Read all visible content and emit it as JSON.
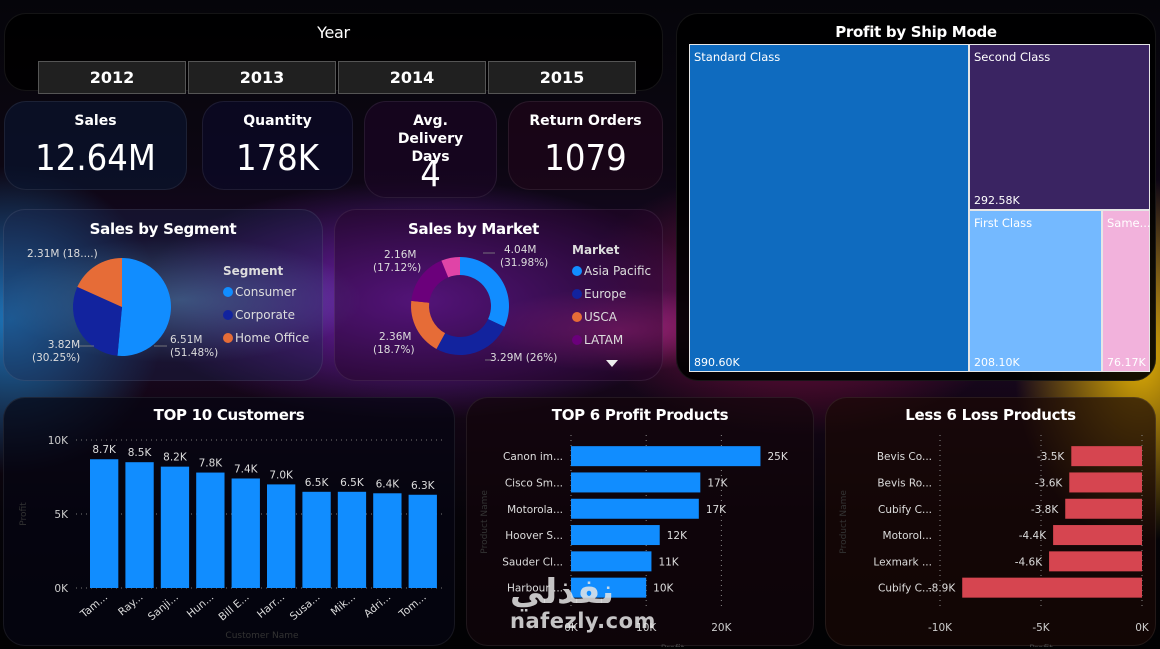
{
  "year_slicer": {
    "title": "Year",
    "options": [
      "2012",
      "2013",
      "2014",
      "2015"
    ]
  },
  "kpis": {
    "sales": {
      "label": "Sales",
      "value": "12.64M"
    },
    "quantity": {
      "label": "Quantity",
      "value": "178K"
    },
    "avg_delivery": {
      "label": "Avg. Delivery Days",
      "value": "4"
    },
    "returns": {
      "label": "Return Orders",
      "value": "1079"
    }
  },
  "colors": {
    "bar_blue": "#118DFF",
    "loss_red": "#D64550",
    "consumer": "#118DFF",
    "corporate": "#12239E",
    "home_office": "#E66C37",
    "latam": "#6B007B",
    "pink": "#E044A7"
  },
  "chart_data": [
    {
      "id": "segment",
      "type": "pie",
      "title": "Sales by Segment",
      "legend_title": "Segment",
      "legend_position": "right",
      "slices": [
        {
          "name": "Consumer",
          "value": 6.51,
          "label": "6.51M",
          "pct_label": "(51.48%)",
          "pct": 51.48,
          "color": "#118DFF"
        },
        {
          "name": "Corporate",
          "value": 3.82,
          "label": "3.82M",
          "pct_label": "(30.25%)",
          "pct": 30.25,
          "color": "#12239E"
        },
        {
          "name": "Home Office",
          "value": 2.31,
          "label": "2.31M (18....)",
          "pct_label": "",
          "pct": 18.27,
          "color": "#E66C37"
        }
      ]
    },
    {
      "id": "market",
      "type": "pie",
      "variant": "donut",
      "title": "Sales by Market",
      "legend_title": "Market",
      "legend_position": "right",
      "legend_items": [
        "Asia Pacific",
        "Europe",
        "USCA",
        "LATAM"
      ],
      "slices": [
        {
          "name": "Asia Pacific",
          "value": 4.04,
          "label": "4.04M",
          "pct_label": "(31.98%)",
          "pct": 31.98,
          "color": "#118DFF"
        },
        {
          "name": "Europe",
          "value": 3.29,
          "label": "3.29M (26%)",
          "pct_label": "",
          "pct": 26.0,
          "color": "#12239E"
        },
        {
          "name": "USCA",
          "value": 2.36,
          "label": "2.36M",
          "pct_label": "(18.7%)",
          "pct": 18.7,
          "color": "#E66C37"
        },
        {
          "name": "LATAM",
          "value": 2.16,
          "label": "2.16M",
          "pct_label": "(17.12%)",
          "pct": 17.12,
          "color": "#6B007B"
        },
        {
          "name": "",
          "value": 0.79,
          "label": "",
          "pct_label": "",
          "pct": 6.2,
          "color": "#E044A7"
        }
      ]
    },
    {
      "id": "shipmode",
      "type": "heatmap",
      "variant": "treemap",
      "title": "Profit by Ship Mode",
      "cells": [
        {
          "name": "Standard Class",
          "value": 890.6,
          "label": "890.60K",
          "color": "#0F6BBF"
        },
        {
          "name": "Second Class",
          "value": 292.58,
          "label": "292.58K",
          "color": "#3A2462"
        },
        {
          "name": "First Class",
          "value": 208.1,
          "label": "208.10K",
          "color": "#74B9FF"
        },
        {
          "name": "Same...",
          "value": 76.17,
          "label": "76.17K",
          "color": "#F2B2DC"
        }
      ]
    },
    {
      "id": "customers",
      "type": "bar",
      "title": "TOP 10 Customers",
      "xlabel": "Customer Name",
      "ylabel": "Profit",
      "ylim": [
        0,
        10000
      ],
      "yticks": [
        "0K",
        "5K",
        "10K"
      ],
      "grid": true,
      "categories": [
        "Tam...",
        "Ray...",
        "Sanji...",
        "Hun...",
        "Bill E...",
        "Harr...",
        "Susa...",
        "Mik...",
        "Adri...",
        "Tom..."
      ],
      "values": [
        8700,
        8500,
        8200,
        7800,
        7400,
        7000,
        6500,
        6500,
        6400,
        6300
      ],
      "value_labels": [
        "8.7K",
        "8.5K",
        "8.2K",
        "7.8K",
        "7.4K",
        "7.0K",
        "6.5K",
        "6.5K",
        "6.4K",
        "6.3K"
      ]
    },
    {
      "id": "profit_products",
      "type": "bar",
      "orientation": "horizontal",
      "title": "TOP 6 Profit Products",
      "xlabel": "Profit",
      "ylabel": "Product Name",
      "xlim": [
        0,
        27000
      ],
      "xticks": [
        {
          "v": 0,
          "label": "0K"
        },
        {
          "v": 10000,
          "label": "10K"
        },
        {
          "v": 20000,
          "label": "20K"
        }
      ],
      "grid": true,
      "categories": [
        "Canon im...",
        "Cisco Sm...",
        "Motorola...",
        "Hoover S...",
        "Sauder Cl...",
        "Harbour ..."
      ],
      "values": [
        25200,
        17200,
        17000,
        11800,
        10700,
        10000
      ],
      "value_labels": [
        "25K",
        "17K",
        "17K",
        "12K",
        "11K",
        "10K"
      ]
    },
    {
      "id": "loss_products",
      "type": "bar",
      "orientation": "horizontal",
      "title": "Less 6 Loss Products",
      "xlabel": "Profit",
      "ylabel": "Product Name",
      "xlim": [
        -10000,
        0
      ],
      "xticks": [
        {
          "v": -10000,
          "label": "-10K"
        },
        {
          "v": -5000,
          "label": "-5K"
        },
        {
          "v": 0,
          "label": "0K"
        }
      ],
      "grid": true,
      "categories": [
        "Bevis Co...",
        "Bevis Ro...",
        "Cubify C...",
        "Motorol...",
        "Lexmark ...",
        "Cubify C..."
      ],
      "values": [
        -3500,
        -3600,
        -3800,
        -4400,
        -4600,
        -8900
      ],
      "value_labels": [
        "-3.5K",
        "-3.6K",
        "-3.8K",
        "-4.4K",
        "-4.6K",
        "-8.9K"
      ]
    }
  ],
  "watermark": {
    "arabic": "نفذلي",
    "latin": "nafezly.com"
  }
}
